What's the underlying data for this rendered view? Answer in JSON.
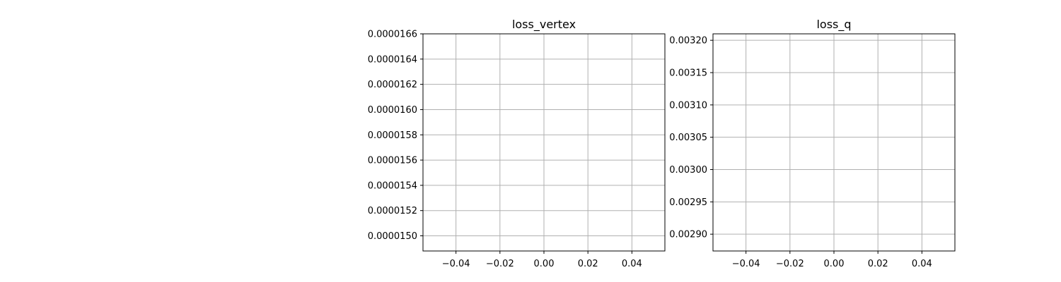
{
  "chart_data": [
    {
      "type": "line",
      "title": "loss_vertex",
      "xlabel": "",
      "ylabel": "",
      "xlim": [
        -0.055,
        0.055
      ],
      "ylim": [
        1.488e-05,
        1.66e-05
      ],
      "xticks": [
        -0.04,
        -0.02,
        0.0,
        0.02,
        0.04
      ],
      "xtick_labels": [
        "−0.04",
        "−0.02",
        "0.00",
        "0.02",
        "0.04"
      ],
      "yticks": [
        1.5e-05,
        1.52e-05,
        1.54e-05,
        1.56e-05,
        1.58e-05,
        1.6e-05,
        1.62e-05,
        1.64e-05,
        1.66e-05
      ],
      "ytick_labels": [
        "0.0000150",
        "0.0000152",
        "0.0000154",
        "0.0000156",
        "0.0000158",
        "0.0000160",
        "0.0000162",
        "0.0000164",
        "0.0000166"
      ],
      "grid": true,
      "series": []
    },
    {
      "type": "line",
      "title": "loss_q",
      "xlabel": "",
      "ylabel": "",
      "xlim": [
        -0.055,
        0.055
      ],
      "ylim": [
        0.002874,
        0.00321
      ],
      "xticks": [
        -0.04,
        -0.02,
        0.0,
        0.02,
        0.04
      ],
      "xtick_labels": [
        "−0.04",
        "−0.02",
        "0.00",
        "0.02",
        "0.04"
      ],
      "yticks": [
        0.0029,
        0.00295,
        0.003,
        0.00305,
        0.0031,
        0.00315,
        0.0032
      ],
      "ytick_labels": [
        "0.00290",
        "0.00295",
        "0.00300",
        "0.00305",
        "0.00310",
        "0.00315",
        "0.00320"
      ],
      "grid": true,
      "series": []
    }
  ],
  "colors": {
    "grid": "#b0b0b0",
    "axes": "#000000",
    "background": "#ffffff"
  }
}
